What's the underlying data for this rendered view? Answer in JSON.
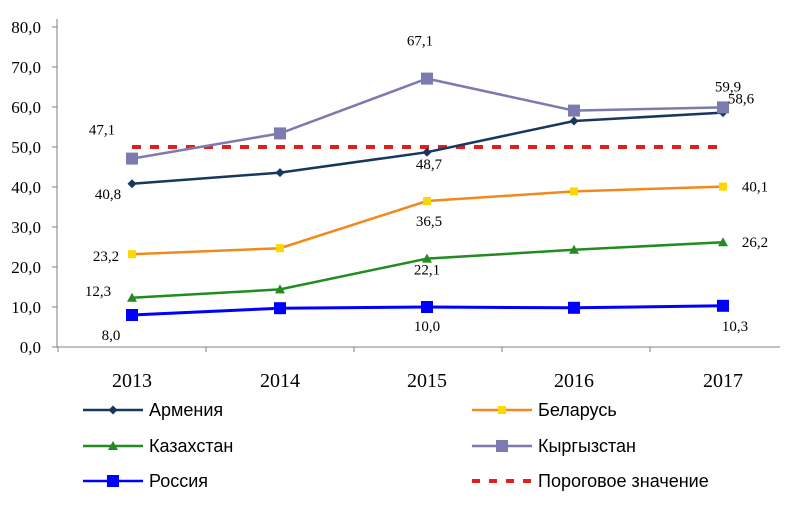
{
  "chart_data": {
    "type": "line",
    "title": "",
    "xlabel": "",
    "ylabel": "",
    "categories": [
      "2013",
      "2014",
      "2015",
      "2016",
      "2017"
    ],
    "ylim": [
      0,
      80
    ],
    "yticks": [
      "0,0",
      "10,0",
      "20,0",
      "30,0",
      "40,0",
      "50,0",
      "60,0",
      "70,0",
      "80,0"
    ],
    "grid": "horizontal",
    "legend_position": "bottom",
    "series": [
      {
        "name": "Армения",
        "color": "#17375E",
        "marker": "diamond",
        "line": "solid",
        "values": [
          40.8,
          43.6,
          48.7,
          56.5,
          58.6
        ],
        "labels": [
          "40,8",
          "",
          "48,7",
          "",
          "58,6"
        ]
      },
      {
        "name": "Беларусь",
        "color": "#F08A1C",
        "marker": "square-small",
        "line": "solid",
        "values": [
          23.2,
          24.7,
          36.5,
          38.9,
          40.1
        ],
        "labels": [
          "23,2",
          "",
          "36,5",
          "",
          "40,1"
        ]
      },
      {
        "name": "Казахстан",
        "color": "#228B22",
        "marker": "triangle",
        "line": "solid",
        "values": [
          12.3,
          14.4,
          22.1,
          24.3,
          26.2
        ],
        "labels": [
          "12,3",
          "",
          "22,1",
          "",
          "26,2"
        ]
      },
      {
        "name": "Кыргызстан",
        "color": "#7B7BB0",
        "marker": "square",
        "line": "solid",
        "values": [
          47.1,
          53.4,
          67.1,
          59.1,
          59.9
        ],
        "labels": [
          "47,1",
          "",
          "67,1",
          "",
          "59,9"
        ]
      },
      {
        "name": "Россия",
        "color": "#0000FF",
        "marker": "square-large",
        "line": "solid",
        "values": [
          8.0,
          9.7,
          10.0,
          9.8,
          10.3
        ],
        "labels": [
          "8,0",
          "",
          "10,0",
          "",
          "10,3"
        ]
      },
      {
        "name": "Пороговое значение",
        "color": "#E0201C",
        "marker": "none",
        "line": "dashed",
        "values": [
          50,
          50,
          50,
          50,
          50
        ],
        "labels": [
          "",
          "",
          "",
          "",
          ""
        ]
      }
    ]
  }
}
